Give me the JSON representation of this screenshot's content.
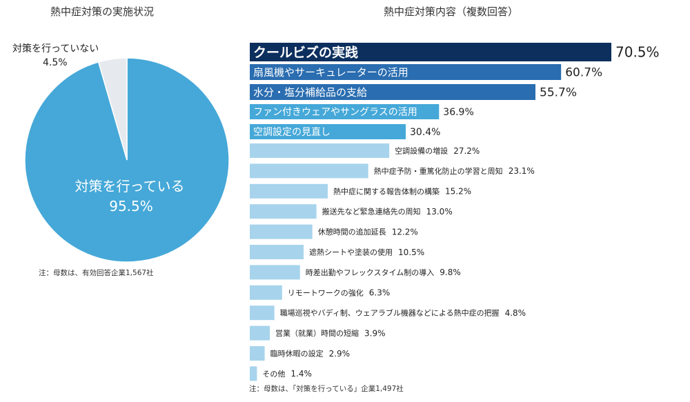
{
  "pie": {
    "title": "熱中症対策の実施状況",
    "note": "注：母数は、有効回答企業1,567社"
  },
  "bar": {
    "title": "熱中症対策内容（複数回答）",
    "note": "注：母数は、「対策を行っている」企業1,497社"
  },
  "colors": {
    "pie_main": "#45a8d8",
    "pie_minor": "#e6eaee",
    "bar_dark": "#0d2f5e",
    "bar_mid": "#2a6db0",
    "bar_light": "#45a8d8",
    "bar_pale": "#a7d4ec"
  },
  "chart_data": [
    {
      "type": "pie",
      "title": "熱中症対策の実施状況",
      "slices": [
        {
          "label": "対策を行っている",
          "value": 95.5,
          "display": "95.5%"
        },
        {
          "label": "対策を行っていない",
          "value": 4.5,
          "display": "4.5%"
        }
      ]
    },
    {
      "type": "bar",
      "orientation": "horizontal",
      "title": "熱中症対策内容（複数回答）",
      "xlim": [
        0,
        70.5
      ],
      "categories": [
        "クールビズの実践",
        "扇風機やサーキュレーターの活用",
        "水分・塩分補給品の支給",
        "ファン付きウェアやサングラスの活用",
        "空調設定の見直し",
        "空調設備の増設",
        "熱中症予防・重篤化防止の学習と周知",
        "熱中症に関する報告体制の構築",
        "搬送先など緊急連絡先の周知",
        "休憩時間の追加延長",
        "遮熱シートや塗装の使用",
        "時差出勤やフレックスタイム制の導入",
        "リモートワークの強化",
        "職場巡視やバディ制、ウェアラブル機器などによる熱中症の把握",
        "営業（就業）時間の短縮",
        "臨時休暇の設定",
        "その他"
      ],
      "values": [
        70.5,
        60.7,
        55.7,
        36.9,
        30.4,
        27.2,
        23.1,
        15.2,
        13.0,
        12.2,
        10.5,
        9.8,
        6.3,
        4.8,
        3.9,
        2.9,
        1.4
      ],
      "value_labels": [
        "70.5%",
        "60.7%",
        "55.7%",
        "36.9%",
        "30.4%",
        "27.2%",
        "23.1%",
        "15.2%",
        "13.0%",
        "12.2%",
        "10.5%",
        "9.8%",
        "6.3%",
        "4.8%",
        "3.9%",
        "2.9%",
        "1.4%"
      ]
    }
  ]
}
